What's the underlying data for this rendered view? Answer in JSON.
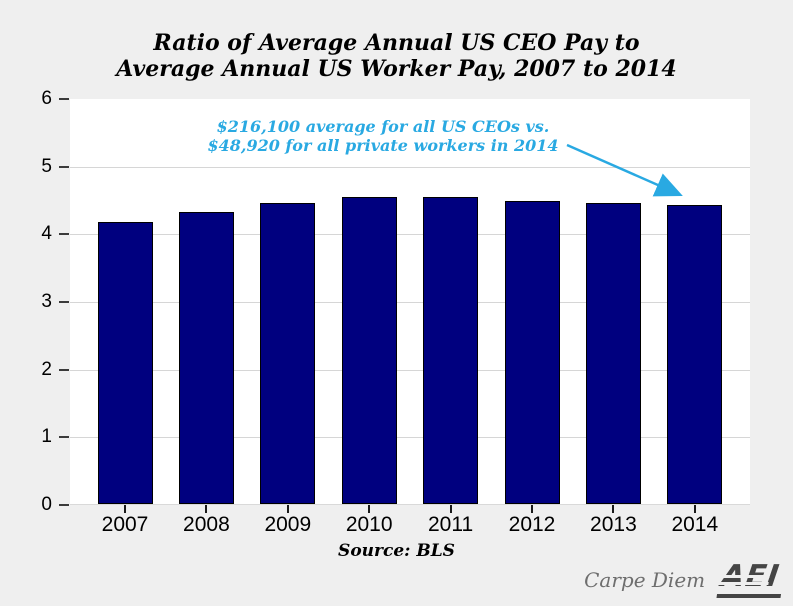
{
  "title": {
    "line1": "Ratio of Average Annual US CEO Pay to",
    "line2": "Average Annual US Worker Pay, 2007 to 2014"
  },
  "annotation": {
    "line1": "$216,100 average for all US CEOs vs.",
    "line2": "$48,920 for all private workers in 2014"
  },
  "source": "Source: BLS",
  "footer": {
    "blog": "Carpe Diem",
    "logo": "AEI"
  },
  "colors": {
    "background": "#efefef",
    "plot_background": "#ffffff",
    "bar_fill": "#00007f",
    "bar_border": "#000000",
    "gridline": "#d6d6d6",
    "annotation": "#29a9e2",
    "title_text": "#000000",
    "blog_text": "#6e6e6e",
    "logo_text": "#454545"
  },
  "chart_data": {
    "type": "bar",
    "title": "Ratio of Average Annual US CEO Pay to Average Annual US Worker Pay, 2007 to 2014",
    "categories": [
      "2007",
      "2008",
      "2009",
      "2010",
      "2011",
      "2012",
      "2013",
      "2014"
    ],
    "values": [
      4.17,
      4.31,
      4.45,
      4.53,
      4.54,
      4.48,
      4.45,
      4.42
    ],
    "xlabel": "",
    "ylabel": "",
    "ylim": [
      0,
      6
    ],
    "yticks": [
      0,
      1,
      2,
      3,
      4,
      5,
      6
    ],
    "grid": true,
    "legend": false,
    "source": "Source: BLS",
    "annotation_text": "$216,100 average for all US CEOs vs. $48,920 for all private workers in 2014",
    "annotation_points_to": "2014"
  }
}
